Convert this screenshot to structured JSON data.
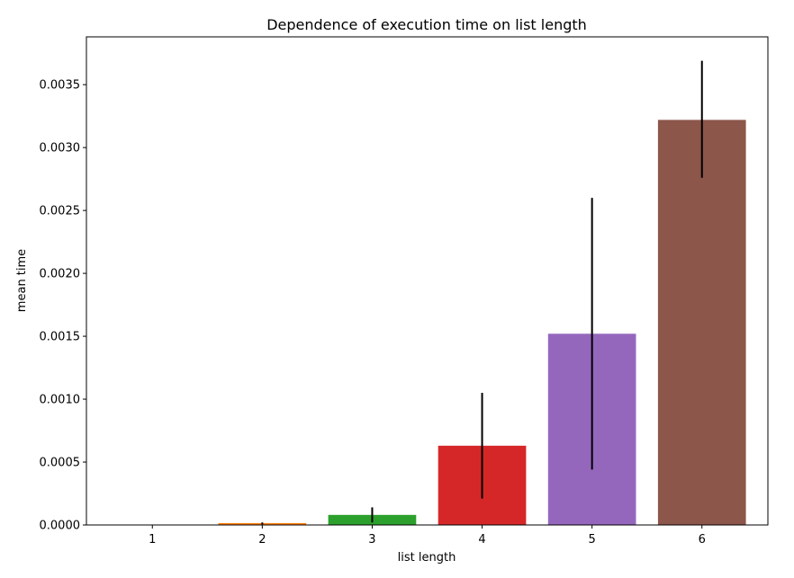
{
  "chart_data": {
    "type": "bar",
    "title": "Dependence of execution time on list length",
    "xlabel": "list length",
    "ylabel": "mean time",
    "categories": [
      "1",
      "2",
      "3",
      "4",
      "5",
      "6"
    ],
    "values": [
      5e-07,
      1.5e-05,
      8e-05,
      0.00063,
      0.00152,
      0.00322
    ],
    "error_low": [
      2e-07,
      5e-06,
      2e-05,
      0.00021,
      0.00044,
      0.00276
    ],
    "error_high": [
      1.5e-06,
      2e-05,
      0.00014,
      0.00105,
      0.0026,
      0.00369
    ],
    "colors": [
      "#1f77b4",
      "#ff7f0e",
      "#2ca02c",
      "#d62728",
      "#9467bd",
      "#8c564b"
    ],
    "error_color": "#000000",
    "ylim": [
      0,
      0.00388
    ],
    "yticks": [
      0,
      0.0005,
      0.001,
      0.0015,
      0.002,
      0.0025,
      0.003,
      0.0035
    ],
    "ytick_labels": [
      "0.0000",
      "0.0005",
      "0.0010",
      "0.0015",
      "0.0020",
      "0.0025",
      "0.0030",
      "0.0035"
    ],
    "grid": false,
    "legend": "none"
  }
}
